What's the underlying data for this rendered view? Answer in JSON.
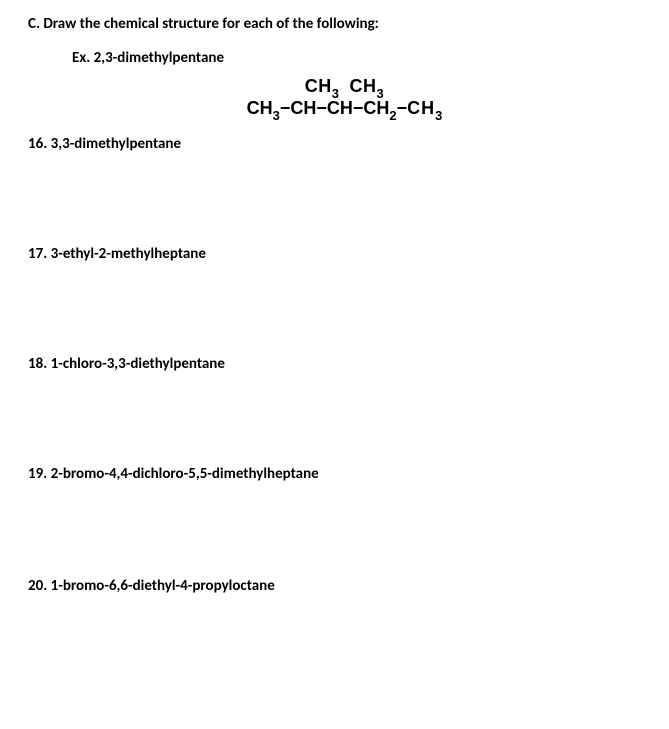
{
  "heading": "C. Draw the chemical structure for each of the following:",
  "example": {
    "label": "Ex. 2,3-dimethylpentane",
    "structure_top_1": "CH",
    "structure_top_2": "CH",
    "structure_sub": "3",
    "structure_bottom_1": "CH",
    "structure_bottom_2": "CH",
    "structure_bottom_3": "CH",
    "structure_bottom_4": "CH",
    "structure_bottom_5": "CH",
    "dash": "−",
    "sub3": "3",
    "sub2": "2"
  },
  "questions": [
    {
      "num": "16.",
      "name": "3,3-dimethylpentane"
    },
    {
      "num": "17.",
      "name": "3-ethyl-2-methylheptane"
    },
    {
      "num": "18.",
      "name": "1-chloro-3,3-diethylpentane"
    },
    {
      "num": "19.",
      "name": "2-bromo-4,4-dichloro-5,5-dimethylheptane"
    },
    {
      "num": "20.",
      "name": "1-bromo-6,6-diethyl-4-propyloctane"
    }
  ]
}
